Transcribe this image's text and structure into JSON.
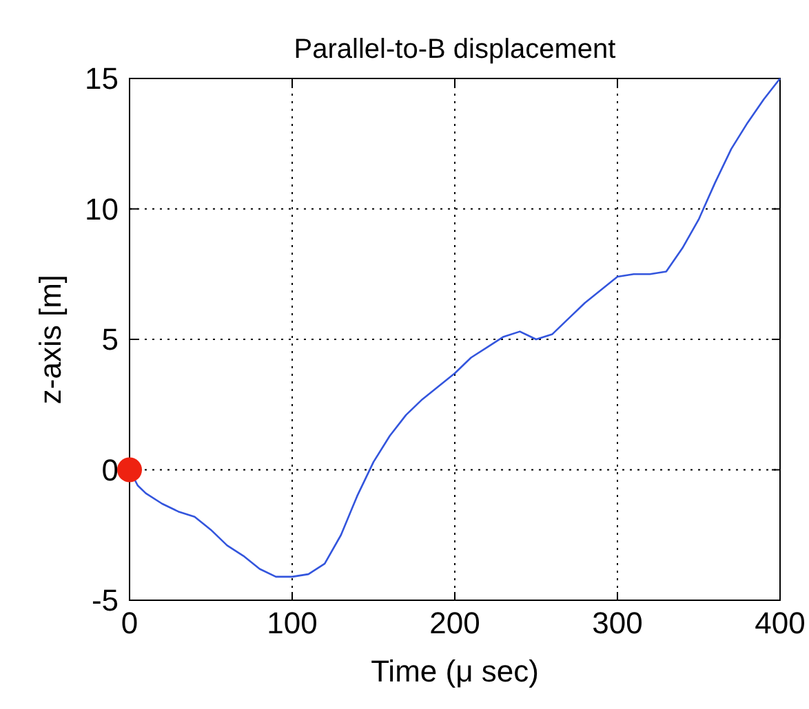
{
  "chart_data": {
    "type": "line",
    "title": "Parallel-to-B displacement",
    "xlabel": "Time (μ sec)",
    "ylabel": "z-axis [m]",
    "xlim": [
      0,
      400
    ],
    "ylim": [
      -5,
      15
    ],
    "xticks": [
      0,
      100,
      200,
      300,
      400
    ],
    "yticks": [
      -5,
      0,
      5,
      10,
      15
    ],
    "grid": true,
    "series": [
      {
        "color": "#3355dd",
        "x": [
          0,
          5,
          10,
          20,
          30,
          40,
          50,
          60,
          70,
          80,
          90,
          100,
          110,
          120,
          130,
          140,
          150,
          160,
          170,
          180,
          190,
          200,
          210,
          220,
          230,
          240,
          250,
          260,
          270,
          280,
          290,
          300,
          310,
          320,
          330,
          340,
          350,
          360,
          370,
          380,
          390,
          400
        ],
        "values": [
          0,
          -0.6,
          -0.9,
          -1.3,
          -1.6,
          -1.8,
          -2.3,
          -2.9,
          -3.3,
          -3.8,
          -4.1,
          -4.1,
          -4.0,
          -3.6,
          -2.5,
          -1.0,
          0.3,
          1.3,
          2.1,
          2.7,
          3.2,
          3.7,
          4.3,
          4.7,
          5.1,
          5.3,
          5.0,
          5.2,
          5.8,
          6.4,
          6.9,
          7.4,
          7.5,
          7.5,
          7.6,
          8.5,
          9.6,
          11.0,
          12.3,
          13.3,
          14.2,
          15.0
        ]
      },
      {
        "type": "scatter",
        "color": "#ee2211",
        "marker": "circle",
        "x": [
          0
        ],
        "values": [
          0
        ]
      }
    ]
  }
}
